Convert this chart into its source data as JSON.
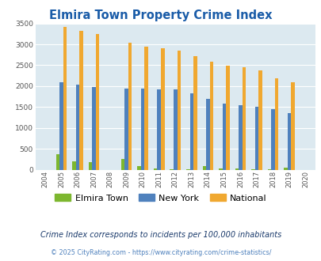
{
  "title": "Elmira Town Property Crime Index",
  "years": [
    2004,
    2005,
    2006,
    2007,
    2008,
    2009,
    2010,
    2011,
    2012,
    2013,
    2014,
    2015,
    2016,
    2017,
    2018,
    2019,
    2020
  ],
  "elmira": [
    0,
    360,
    200,
    185,
    0,
    265,
    80,
    20,
    15,
    15,
    80,
    20,
    30,
    10,
    10,
    50,
    0
  ],
  "new_york": [
    0,
    2090,
    2040,
    1980,
    0,
    1940,
    1940,
    1920,
    1920,
    1820,
    1700,
    1590,
    1550,
    1500,
    1440,
    1360,
    0
  ],
  "national": [
    0,
    3410,
    3330,
    3250,
    0,
    3040,
    2950,
    2900,
    2850,
    2720,
    2590,
    2490,
    2460,
    2370,
    2190,
    2100,
    0
  ],
  "elmira_color": "#7db72f",
  "new_york_color": "#4f81bd",
  "national_color": "#f0a830",
  "bg_color": "#dce9f0",
  "ylim": [
    0,
    3500
  ],
  "subtitle": "Crime Index corresponds to incidents per 100,000 inhabitants",
  "footer": "© 2025 CityRating.com - https://www.cityrating.com/crime-statistics/",
  "title_color": "#1a5ca8",
  "subtitle_color": "#1a3a6b",
  "footer_color": "#4f81bd"
}
